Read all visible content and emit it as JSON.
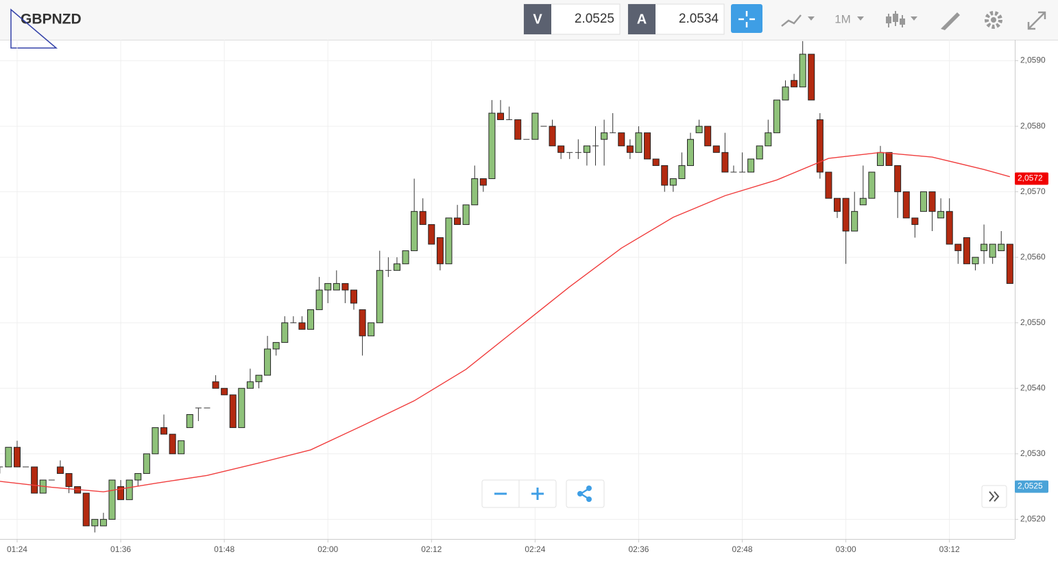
{
  "toolbar": {
    "symbol": "GBPNZD",
    "bid_label": "V",
    "bid": "2.0525",
    "ask_label": "A",
    "ask": "2.0534",
    "period": "1M"
  },
  "chart_data": {
    "type": "candlestick",
    "x": [
      "01:22",
      "01:23",
      "01:24",
      "01:25",
      "01:26",
      "01:27",
      "01:28",
      "01:29",
      "01:30",
      "01:31",
      "01:32",
      "01:33",
      "01:34",
      "01:35",
      "01:36",
      "01:37",
      "01:38",
      "01:39",
      "01:40",
      "01:41",
      "01:42",
      "01:43",
      "01:44",
      "01:45",
      "01:46",
      "01:47",
      "01:48",
      "01:49",
      "01:50",
      "01:51",
      "01:52",
      "01:53",
      "01:54",
      "01:55",
      "01:56",
      "01:57",
      "01:58",
      "01:59",
      "02:00",
      "02:01",
      "02:02",
      "02:03",
      "02:04",
      "02:05",
      "02:06",
      "02:07",
      "02:08",
      "02:09",
      "02:10",
      "02:11",
      "02:12",
      "02:13",
      "02:14",
      "02:15",
      "02:16",
      "02:17",
      "02:18",
      "02:19",
      "02:20",
      "02:21",
      "02:22",
      "02:23",
      "02:24",
      "02:25",
      "02:26",
      "02:27",
      "02:28",
      "02:29",
      "02:30",
      "02:31",
      "02:32",
      "02:33",
      "02:34",
      "02:35",
      "02:36",
      "02:37",
      "02:38",
      "02:39",
      "02:40",
      "02:41",
      "02:42",
      "02:43",
      "02:44",
      "02:45",
      "02:46",
      "02:47",
      "02:48",
      "02:49",
      "02:50",
      "02:51",
      "02:52",
      "02:53",
      "02:54",
      "02:55",
      "02:56",
      "02:57",
      "02:58",
      "02:59",
      "03:00",
      "03:01",
      "03:02",
      "03:03",
      "03:04",
      "03:05",
      "03:06",
      "03:07",
      "03:08",
      "03:09",
      "03:10",
      "03:11",
      "03:12",
      "03:13",
      "03:14",
      "03:15",
      "03:16",
      "03:17",
      "03:18",
      "03:19"
    ],
    "open": [
      2.0528,
      2.0528,
      2.0531,
      2.0528,
      2.0528,
      2.0524,
      2.0526,
      2.0528,
      2.0527,
      2.0525,
      2.0524,
      2.0519,
      2.0519,
      2.052,
      2.0525,
      2.0523,
      2.0526,
      2.0527,
      2.053,
      2.0534,
      2.0533,
      2.053,
      2.0534,
      2.0537,
      2.0537,
      2.0541,
      2.054,
      2.0539,
      2.0534,
      2.054,
      2.0541,
      2.0542,
      2.0546,
      2.0547,
      2.055,
      2.055,
      2.0549,
      2.0552,
      2.0555,
      2.0555,
      2.0556,
      2.0555,
      2.0552,
      2.0548,
      2.055,
      2.0558,
      2.0558,
      2.0559,
      2.0561,
      2.0567,
      2.0565,
      2.0563,
      2.0559,
      2.0566,
      2.0565,
      2.0568,
      2.0572,
      2.0572,
      2.0582,
      2.0581,
      2.0581,
      2.0578,
      2.0578,
      2.058,
      2.058,
      2.0577,
      2.0576,
      2.0576,
      2.0576,
      2.0577,
      2.0578,
      2.0579,
      2.0579,
      2.0577,
      2.0576,
      2.0579,
      2.0575,
      2.0574,
      2.0571,
      2.0572,
      2.0574,
      2.0579,
      2.058,
      2.0577,
      2.0576,
      2.0573,
      2.0573,
      2.0573,
      2.0575,
      2.0577,
      2.0579,
      2.0584,
      2.0587,
      2.0586,
      2.0591,
      2.0581,
      2.0573,
      2.0569,
      2.0569,
      2.0564,
      2.0568,
      2.0569,
      2.0574,
      2.0576,
      2.0574,
      2.057,
      2.0566,
      2.0567,
      2.057,
      2.0566,
      2.0567,
      2.0562,
      2.0563,
      2.0559,
      2.0561,
      2.056,
      2.0561,
      2.0562
    ],
    "high": [
      2.0528,
      2.0531,
      2.0532,
      2.0528,
      2.0528,
      2.0526,
      2.0526,
      2.0529,
      2.0527,
      2.0525,
      2.0524,
      2.052,
      2.0521,
      2.0526,
      2.0526,
      2.0526,
      2.0527,
      2.053,
      2.0534,
      2.0536,
      2.0533,
      2.0532,
      2.0536,
      2.0537,
      2.0537,
      2.0542,
      2.054,
      2.0539,
      2.054,
      2.0543,
      2.0542,
      2.0548,
      2.0547,
      2.0551,
      2.0551,
      2.0551,
      2.0552,
      2.0557,
      2.0556,
      2.0558,
      2.0556,
      2.0555,
      2.0552,
      2.055,
      2.0561,
      2.056,
      2.056,
      2.0561,
      2.0572,
      2.0569,
      2.0565,
      2.0563,
      2.0566,
      2.0568,
      2.0568,
      2.0574,
      2.0572,
      2.0584,
      2.0584,
      2.0583,
      2.0581,
      2.0578,
      2.0582,
      2.058,
      2.0581,
      2.0577,
      2.0576,
      2.0578,
      2.0577,
      2.058,
      2.0581,
      2.0582,
      2.0579,
      2.0578,
      2.058,
      2.0579,
      2.0575,
      2.0574,
      2.0572,
      2.0576,
      2.0579,
      2.0581,
      2.058,
      2.0577,
      2.0579,
      2.0574,
      2.0576,
      2.0575,
      2.0577,
      2.0581,
      2.0584,
      2.0587,
      2.0588,
      2.0593,
      2.0591,
      2.0582,
      2.0573,
      2.0569,
      2.0569,
      2.057,
      2.0574,
      2.0573,
      2.0577,
      2.0576,
      2.0574,
      2.057,
      2.0566,
      2.057,
      2.057,
      2.0569,
      2.0569,
      2.0562,
      2.0563,
      2.056,
      2.0565,
      2.0562,
      2.0564,
      2.0562
    ],
    "low": [
      2.0527,
      2.0528,
      2.0528,
      2.0528,
      2.0524,
      2.0524,
      2.0526,
      2.0527,
      2.0524,
      2.0524,
      2.0519,
      2.0518,
      2.0519,
      2.052,
      2.0523,
      2.0523,
      2.0525,
      2.0527,
      2.053,
      2.0533,
      2.053,
      2.053,
      2.0534,
      2.0535,
      2.0537,
      2.054,
      2.0539,
      2.0534,
      2.0534,
      2.054,
      2.054,
      2.0542,
      2.0545,
      2.0547,
      2.055,
      2.0549,
      2.0549,
      2.0552,
      2.0553,
      2.0555,
      2.0553,
      2.0552,
      2.0545,
      2.0548,
      2.055,
      2.0557,
      2.0558,
      2.0559,
      2.0561,
      2.0565,
      2.0562,
      2.0558,
      2.0559,
      2.0565,
      2.0565,
      2.0568,
      2.057,
      2.0572,
      2.0581,
      2.0581,
      2.0578,
      2.0578,
      2.0578,
      2.058,
      2.0577,
      2.0575,
      2.0575,
      2.0575,
      2.0574,
      2.0574,
      2.0574,
      2.0579,
      2.0577,
      2.0575,
      2.0576,
      2.0575,
      2.0574,
      2.057,
      2.057,
      2.0572,
      2.0574,
      2.0579,
      2.0577,
      2.0576,
      2.0573,
      2.0573,
      2.0573,
      2.0573,
      2.0575,
      2.0577,
      2.0579,
      2.0584,
      2.0586,
      2.0586,
      2.0584,
      2.0572,
      2.0569,
      2.0566,
      2.0559,
      2.0564,
      2.0568,
      2.0569,
      2.0574,
      2.0574,
      2.0566,
      2.0566,
      2.0563,
      2.0567,
      2.0564,
      2.0566,
      2.0562,
      2.0559,
      2.0559,
      2.0558,
      2.0559,
      2.0559,
      2.0561,
      2.0556
    ],
    "close": [
      2.0528,
      2.0531,
      2.0528,
      2.0528,
      2.0524,
      2.0526,
      2.0526,
      2.0527,
      2.0525,
      2.0524,
      2.0519,
      2.052,
      2.052,
      2.0526,
      2.0523,
      2.0526,
      2.0527,
      2.053,
      2.0534,
      2.0533,
      2.053,
      2.0532,
      2.0536,
      2.0537,
      2.0537,
      2.054,
      2.0539,
      2.0534,
      2.054,
      2.0541,
      2.0542,
      2.0546,
      2.0547,
      2.055,
      2.055,
      2.0549,
      2.0552,
      2.0555,
      2.0556,
      2.0556,
      2.0555,
      2.0553,
      2.0548,
      2.055,
      2.0558,
      2.0558,
      2.0559,
      2.0561,
      2.0567,
      2.0565,
      2.0562,
      2.0559,
      2.0566,
      2.0565,
      2.0568,
      2.0572,
      2.0571,
      2.0582,
      2.0581,
      2.0581,
      2.0578,
      2.0578,
      2.0582,
      2.058,
      2.0577,
      2.0576,
      2.0576,
      2.0576,
      2.0577,
      2.0577,
      2.0579,
      2.0579,
      2.0577,
      2.0576,
      2.0579,
      2.0575,
      2.0574,
      2.0571,
      2.0572,
      2.0574,
      2.0578,
      2.058,
      2.0577,
      2.0576,
      2.0573,
      2.0573,
      2.0573,
      2.0575,
      2.0577,
      2.0579,
      2.0584,
      2.0586,
      2.0586,
      2.0591,
      2.0584,
      2.0573,
      2.0569,
      2.0567,
      2.0564,
      2.0567,
      2.0569,
      2.0573,
      2.0576,
      2.0574,
      2.057,
      2.0566,
      2.0565,
      2.057,
      2.0567,
      2.0567,
      2.0562,
      2.0561,
      2.0559,
      2.056,
      2.0562,
      2.0562,
      2.0562,
      2.0556
    ],
    "up_color": "#8fc27a",
    "down_color": "#b32a10",
    "line": {
      "color": "#f03c3c",
      "x": [
        "01:22",
        "01:28",
        "01:34",
        "01:40",
        "01:46",
        "01:52",
        "01:58",
        "02:04",
        "02:10",
        "02:16",
        "02:22",
        "02:28",
        "02:34",
        "02:40",
        "02:46",
        "02:52",
        "02:58",
        "03:04",
        "03:10",
        "03:16",
        "03:19"
      ],
      "values": [
        2.05258,
        2.05249,
        2.05242,
        2.05255,
        2.05267,
        2.05286,
        2.05306,
        2.05343,
        2.05381,
        2.05429,
        2.05492,
        2.05555,
        2.05614,
        2.05661,
        2.05694,
        2.05718,
        2.05751,
        2.0576,
        2.05753,
        2.05734,
        2.05723
      ]
    },
    "price_tags": {
      "values": [
        2.0572,
        2.0525
      ],
      "value_labels": [
        "2,0572",
        "2,0525"
      ],
      "colors": [
        "#f00000",
        "#4aa3d8"
      ]
    },
    "ylim": [
      2.0517,
      2.05932
    ],
    "yticks": [
      {
        "value": 2.052,
        "label": "2,0520"
      },
      {
        "value": 2.053,
        "label": "2,0530"
      },
      {
        "value": 2.054,
        "label": "2,0540"
      },
      {
        "value": 2.055,
        "label": "2,0550"
      },
      {
        "value": 2.056,
        "label": "2,0560"
      },
      {
        "value": 2.057,
        "label": "2,0570"
      },
      {
        "value": 2.058,
        "label": "2,0580"
      },
      {
        "value": 2.059,
        "label": "2,0590"
      }
    ],
    "xticks": [
      "01:24",
      "01:36",
      "01:48",
      "02:00",
      "02:12",
      "02:24",
      "02:36",
      "02:48",
      "03:00",
      "03:12"
    ],
    "grid": true
  }
}
